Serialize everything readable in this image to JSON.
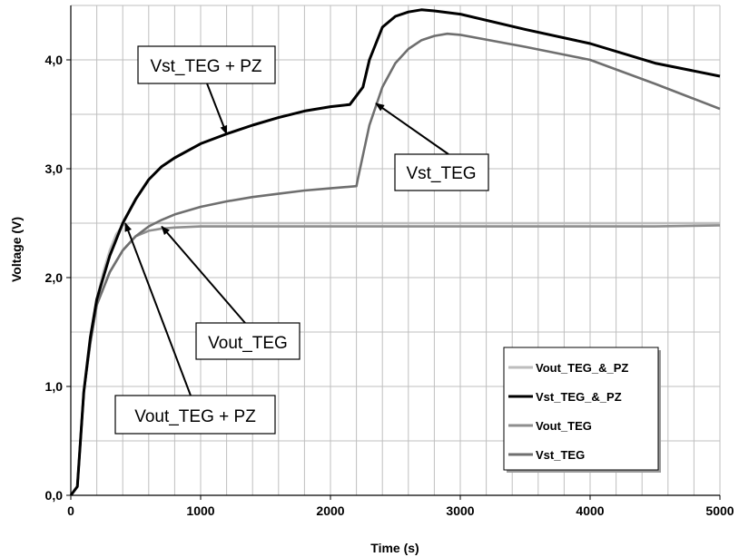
{
  "chart_data": {
    "type": "line",
    "title": "",
    "xlabel": "Time (s)",
    "ylabel": "Voltage (V)",
    "xlim": [
      0,
      5000
    ],
    "ylim": [
      0,
      4.5
    ],
    "x_ticks": [
      0,
      1000,
      2000,
      3000,
      4000,
      5000
    ],
    "x_tick_labels": [
      "0",
      "1000",
      "2000",
      "3000",
      "4000",
      "5000"
    ],
    "y_ticks": [
      0,
      1,
      2,
      3,
      4
    ],
    "y_tick_labels": [
      "0,0",
      "1,0",
      "2,0",
      "3,0",
      "4,0"
    ],
    "grid": true,
    "legend_position": "bottom-right",
    "legend": [
      "Vout_TEG_&_PZ",
      "Vst_TEG_&_PZ",
      "Vout_TEG",
      "Vst_TEG"
    ],
    "series": [
      {
        "name": "Vout_TEG_&_PZ",
        "color": "#bdbdbd",
        "x": [
          0,
          50,
          100,
          150,
          200,
          250,
          300,
          350,
          400,
          450,
          500,
          600,
          800,
          1000,
          1500,
          2000,
          2500,
          3000,
          3500,
          4000,
          4500,
          5000
        ],
        "y": [
          0.0,
          0.08,
          0.95,
          1.45,
          1.8,
          2.05,
          2.25,
          2.4,
          2.48,
          2.5,
          2.5,
          2.5,
          2.5,
          2.5,
          2.5,
          2.5,
          2.5,
          2.5,
          2.5,
          2.5,
          2.5,
          2.5
        ]
      },
      {
        "name": "Vst_TEG_&_PZ",
        "color": "#000000",
        "x": [
          0,
          50,
          100,
          150,
          200,
          300,
          400,
          500,
          600,
          700,
          800,
          1000,
          1200,
          1400,
          1600,
          1800,
          2000,
          2150,
          2250,
          2300,
          2400,
          2500,
          2600,
          2700,
          2800,
          3000,
          3500,
          4000,
          4500,
          5000
        ],
        "y": [
          0.0,
          0.08,
          0.95,
          1.45,
          1.8,
          2.2,
          2.5,
          2.72,
          2.9,
          3.02,
          3.1,
          3.23,
          3.32,
          3.4,
          3.47,
          3.53,
          3.57,
          3.59,
          3.75,
          4.0,
          4.3,
          4.4,
          4.44,
          4.46,
          4.45,
          4.42,
          4.28,
          4.15,
          3.97,
          3.85
        ]
      },
      {
        "name": "Vout_TEG",
        "color": "#8e8e8e",
        "x": [
          0,
          50,
          100,
          150,
          200,
          300,
          400,
          500,
          600,
          700,
          800,
          1000,
          1200,
          1500,
          2000,
          2500,
          3000,
          3500,
          4000,
          4500,
          5000
        ],
        "y": [
          0.0,
          0.08,
          0.95,
          1.4,
          1.75,
          2.05,
          2.25,
          2.38,
          2.43,
          2.45,
          2.46,
          2.47,
          2.47,
          2.47,
          2.47,
          2.47,
          2.47,
          2.47,
          2.47,
          2.47,
          2.48
        ]
      },
      {
        "name": "Vst_TEG",
        "color": "#6f6f6f",
        "x": [
          0,
          50,
          100,
          150,
          200,
          300,
          400,
          500,
          600,
          700,
          800,
          1000,
          1200,
          1400,
          1600,
          1800,
          2000,
          2200,
          2210,
          2300,
          2400,
          2500,
          2600,
          2700,
          2800,
          2900,
          3000,
          3500,
          4000,
          4500,
          5000
        ],
        "y": [
          0.0,
          0.08,
          0.95,
          1.4,
          1.75,
          2.05,
          2.25,
          2.38,
          2.47,
          2.53,
          2.58,
          2.65,
          2.7,
          2.74,
          2.77,
          2.8,
          2.82,
          2.84,
          2.9,
          3.4,
          3.75,
          3.97,
          4.1,
          4.18,
          4.22,
          4.24,
          4.23,
          4.12,
          4.0,
          3.78,
          3.55
        ]
      }
    ],
    "annotations": [
      {
        "text": "Vst_TEG + PZ",
        "points_to": [
          1200,
          3.32
        ]
      },
      {
        "text": "Vst_TEG",
        "points_to": [
          2350,
          3.6
        ]
      },
      {
        "text": "Vout_TEG",
        "points_to": [
          700,
          2.47
        ]
      },
      {
        "text": "Vout_TEG + PZ",
        "points_to": [
          420,
          2.5
        ]
      }
    ]
  }
}
